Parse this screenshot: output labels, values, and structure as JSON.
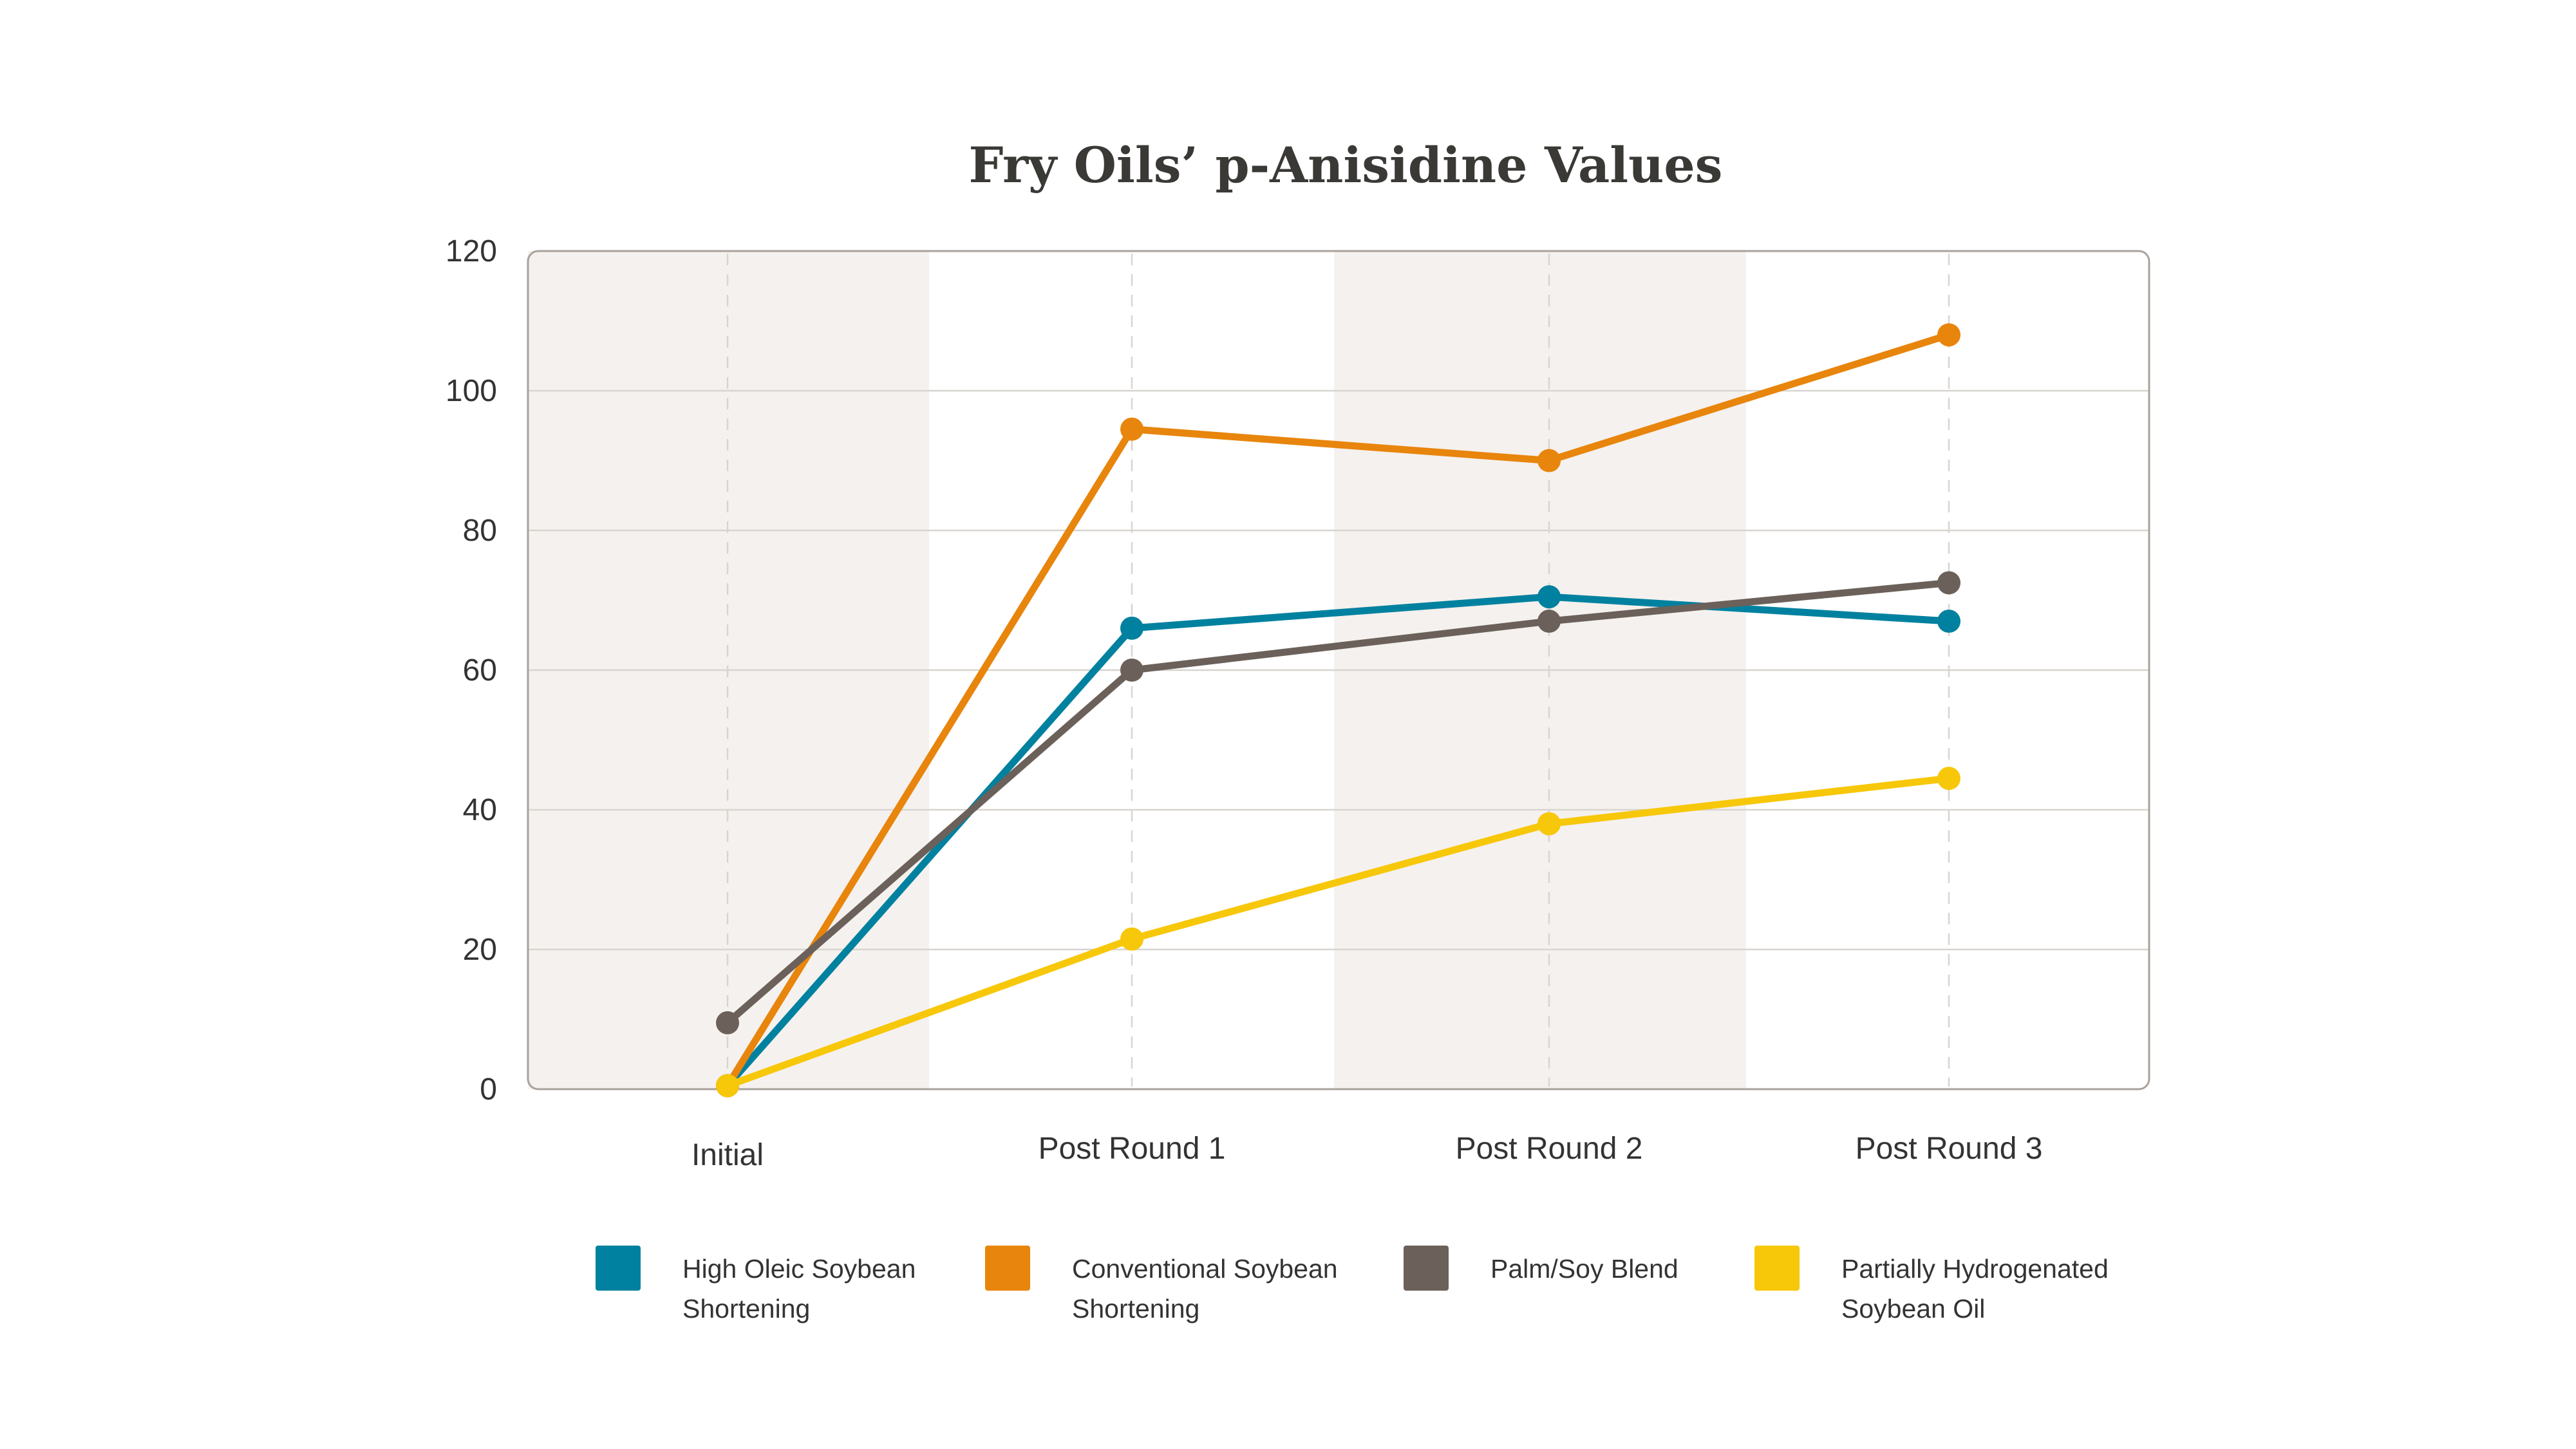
{
  "chart_data": {
    "type": "line",
    "title": "Fry Oils’ p-Anisidine Values",
    "xlabel": "",
    "ylabel": "",
    "categories": [
      "Initial",
      "Post Round 1",
      "Post Round 2",
      "Post Round 3"
    ],
    "ylim": [
      0,
      120
    ],
    "yticks": [
      0,
      20,
      40,
      60,
      80,
      100,
      120
    ],
    "grid": true,
    "legend_position": "bottom",
    "series": [
      {
        "name": "High Oleic Soybean Shortening",
        "name_lines": [
          "High Oleic Soybean",
          "Shortening"
        ],
        "color": "#00819f",
        "values": [
          0.5,
          66,
          70.5,
          67
        ]
      },
      {
        "name": "Conventional Soybean Shortening",
        "name_lines": [
          "Conventional Soybean",
          "Shortening"
        ],
        "color": "#e8850c",
        "values": [
          0.5,
          94.5,
          90,
          108
        ]
      },
      {
        "name": "Palm/Soy Blend",
        "name_lines": [
          "Palm/Soy Blend"
        ],
        "color": "#6b615a",
        "values": [
          9.5,
          60,
          67,
          72.5
        ]
      },
      {
        "name": "Partially Hydrogenated Soybean Oil",
        "name_lines": [
          "Partially Hydrogenated",
          "Soybean Oil"
        ],
        "color": "#f7c70a",
        "values": [
          0.5,
          21.5,
          38,
          44.5
        ]
      }
    ]
  },
  "style": {
    "band_color": "#f5f1ee",
    "grid_color": "#d8d4d0",
    "frame_color": "#a9a29c",
    "text_color": "#333333"
  }
}
